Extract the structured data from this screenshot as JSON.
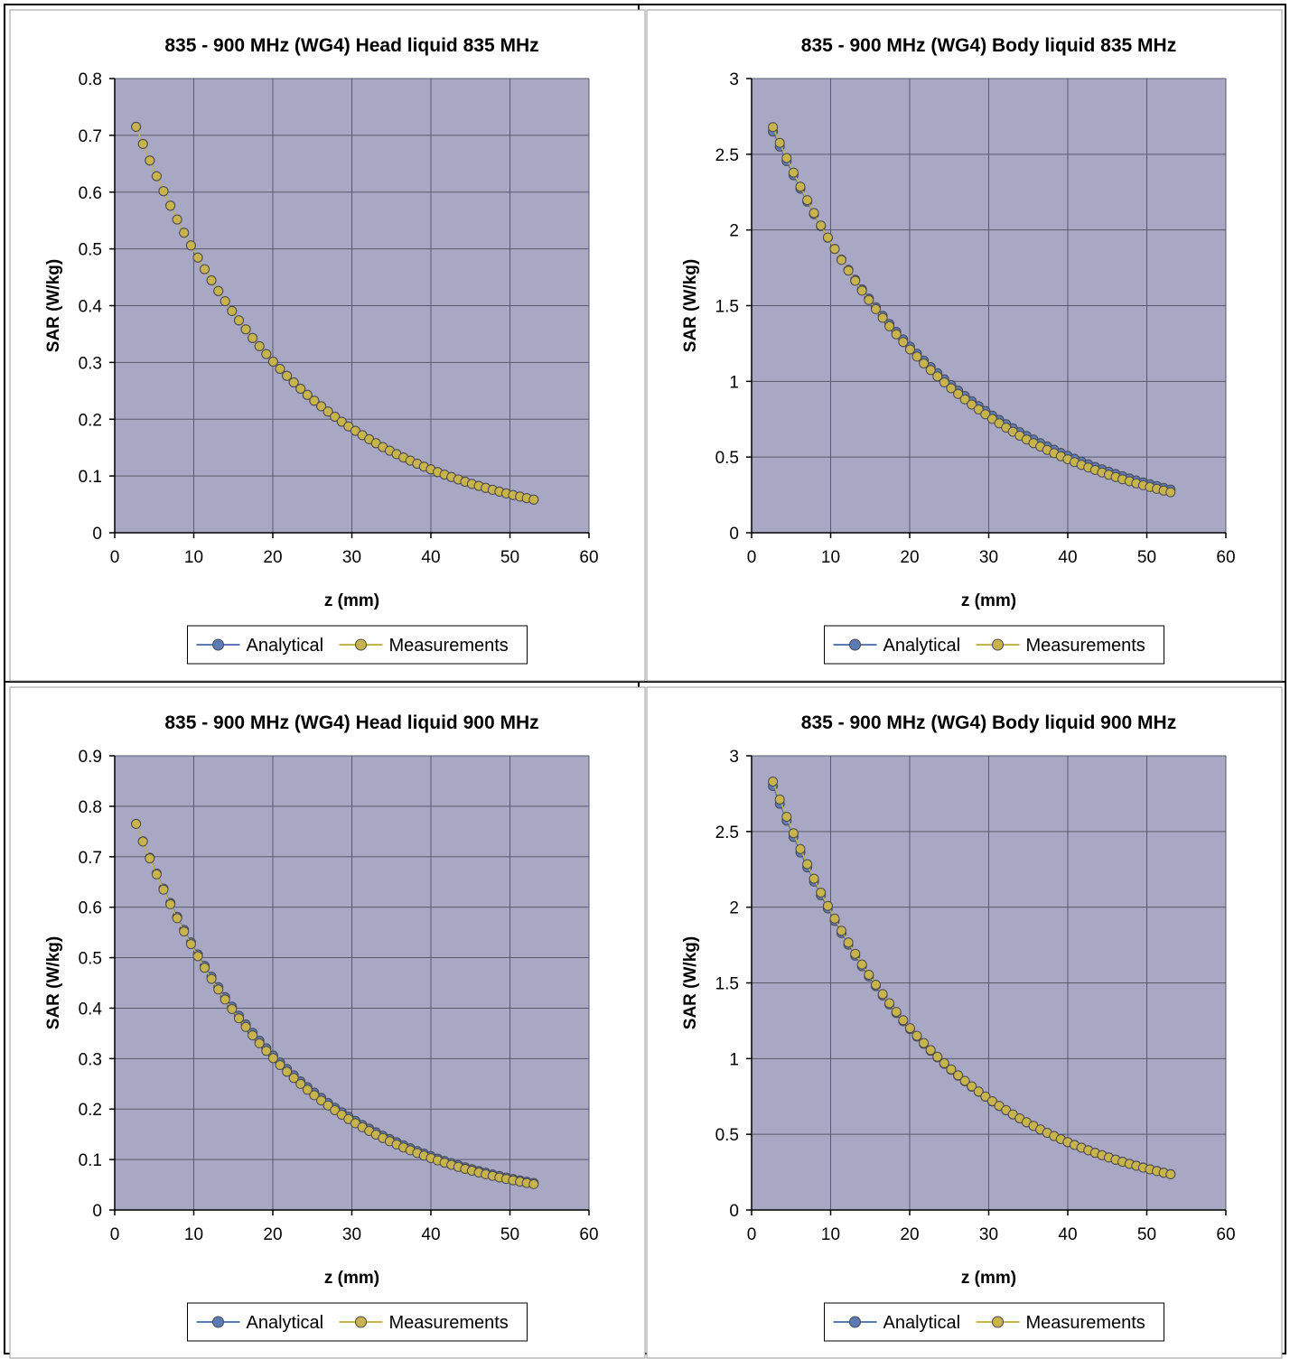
{
  "colors": {
    "plot_bg": "#a8a8c4",
    "grid": "#5a5a6e",
    "analytical": "#5b7bb4",
    "measurements": "#c8b44a",
    "frame": "#000000"
  },
  "legend": {
    "analytical": "Analytical",
    "measurements": "Measurements"
  },
  "chart_data": [
    {
      "type": "scatter",
      "title": "835 - 900 MHz (WG4) Head liquid 835 MHz",
      "xlabel": "z (mm)",
      "ylabel": "SAR (W/kg)",
      "xlim": [
        0,
        60
      ],
      "ylim": [
        0,
        0.8
      ],
      "xticks": [
        0,
        10,
        20,
        30,
        40,
        50,
        60
      ],
      "yticks": [
        0,
        0.1,
        0.2,
        0.3,
        0.4,
        0.5,
        0.6,
        0.7,
        0.8
      ],
      "ytick_labels": [
        "0",
        "0.1",
        "0.2",
        "0.3",
        "0.4",
        "0.5",
        "0.6",
        "0.7",
        "0.8"
      ],
      "grid": true,
      "legend_position": "bottom",
      "series": [
        {
          "name": "Analytical",
          "model": {
            "x0": 2.7,
            "x1": 53,
            "a": 0.715,
            "b": 0.0498,
            "n": 59
          }
        },
        {
          "name": "Measurements",
          "model": {
            "x0": 2.7,
            "x1": 53,
            "a": 0.715,
            "b": 0.0498,
            "n": 59
          }
        }
      ]
    },
    {
      "type": "scatter",
      "title": "835 - 900 MHz (WG4) Body liquid 835 MHz",
      "xlabel": "z (mm)",
      "ylabel": "SAR (W/kg)",
      "xlim": [
        0,
        60
      ],
      "ylim": [
        0,
        3
      ],
      "xticks": [
        0,
        10,
        20,
        30,
        40,
        50,
        60
      ],
      "yticks": [
        0,
        0.5,
        1,
        1.5,
        2,
        2.5,
        3
      ],
      "ytick_labels": [
        "0",
        "0.5",
        "1",
        "1.5",
        "2",
        "2.5",
        "3"
      ],
      "grid": true,
      "legend_position": "bottom",
      "series": [
        {
          "name": "Analytical",
          "model": {
            "x0": 2.7,
            "x1": 53,
            "a": 2.65,
            "b": 0.0443,
            "n": 59
          }
        },
        {
          "name": "Measurements",
          "model": {
            "x0": 2.7,
            "x1": 53,
            "a": 2.68,
            "b": 0.0458,
            "n": 59
          }
        }
      ]
    },
    {
      "type": "scatter",
      "title": "835 - 900 MHz (WG4) Head liquid 900 MHz",
      "xlabel": "z (mm)",
      "ylabel": "SAR (W/kg)",
      "xlim": [
        0,
        60
      ],
      "ylim": [
        0,
        0.9
      ],
      "xticks": [
        0,
        10,
        20,
        30,
        40,
        50,
        60
      ],
      "yticks": [
        0,
        0.1,
        0.2,
        0.3,
        0.4,
        0.5,
        0.6,
        0.7,
        0.8,
        0.9
      ],
      "ytick_labels": [
        "0",
        "0.1",
        "0.2",
        "0.3",
        "0.4",
        "0.5",
        "0.6",
        "0.7",
        "0.8",
        "0.9"
      ],
      "grid": true,
      "legend_position": "bottom",
      "series": [
        {
          "name": "Analytical",
          "model": {
            "x0": 2.7,
            "x1": 53,
            "a": 0.765,
            "b": 0.0528,
            "n": 59
          }
        },
        {
          "name": "Measurements",
          "model": {
            "x0": 2.7,
            "x1": 53,
            "a": 0.765,
            "b": 0.0538,
            "n": 59
          }
        }
      ]
    },
    {
      "type": "scatter",
      "title": "835 - 900 MHz (WG4) Body liquid 900 MHz",
      "xlabel": "z (mm)",
      "ylabel": "SAR (W/kg)",
      "xlim": [
        0,
        60
      ],
      "ylim": [
        0,
        3
      ],
      "xticks": [
        0,
        10,
        20,
        30,
        40,
        50,
        60
      ],
      "yticks": [
        0,
        0.5,
        1,
        1.5,
        2,
        2.5,
        3
      ],
      "ytick_labels": [
        "0",
        "0.5",
        "1",
        "1.5",
        "2",
        "2.5",
        "3"
      ],
      "grid": true,
      "legend_position": "bottom",
      "series": [
        {
          "name": "Analytical",
          "model": {
            "x0": 2.7,
            "x1": 53,
            "a": 2.8,
            "b": 0.0491,
            "n": 59
          }
        },
        {
          "name": "Measurements",
          "model": {
            "x0": 2.7,
            "x1": 53,
            "a": 2.83,
            "b": 0.0494,
            "n": 59
          }
        }
      ]
    }
  ]
}
